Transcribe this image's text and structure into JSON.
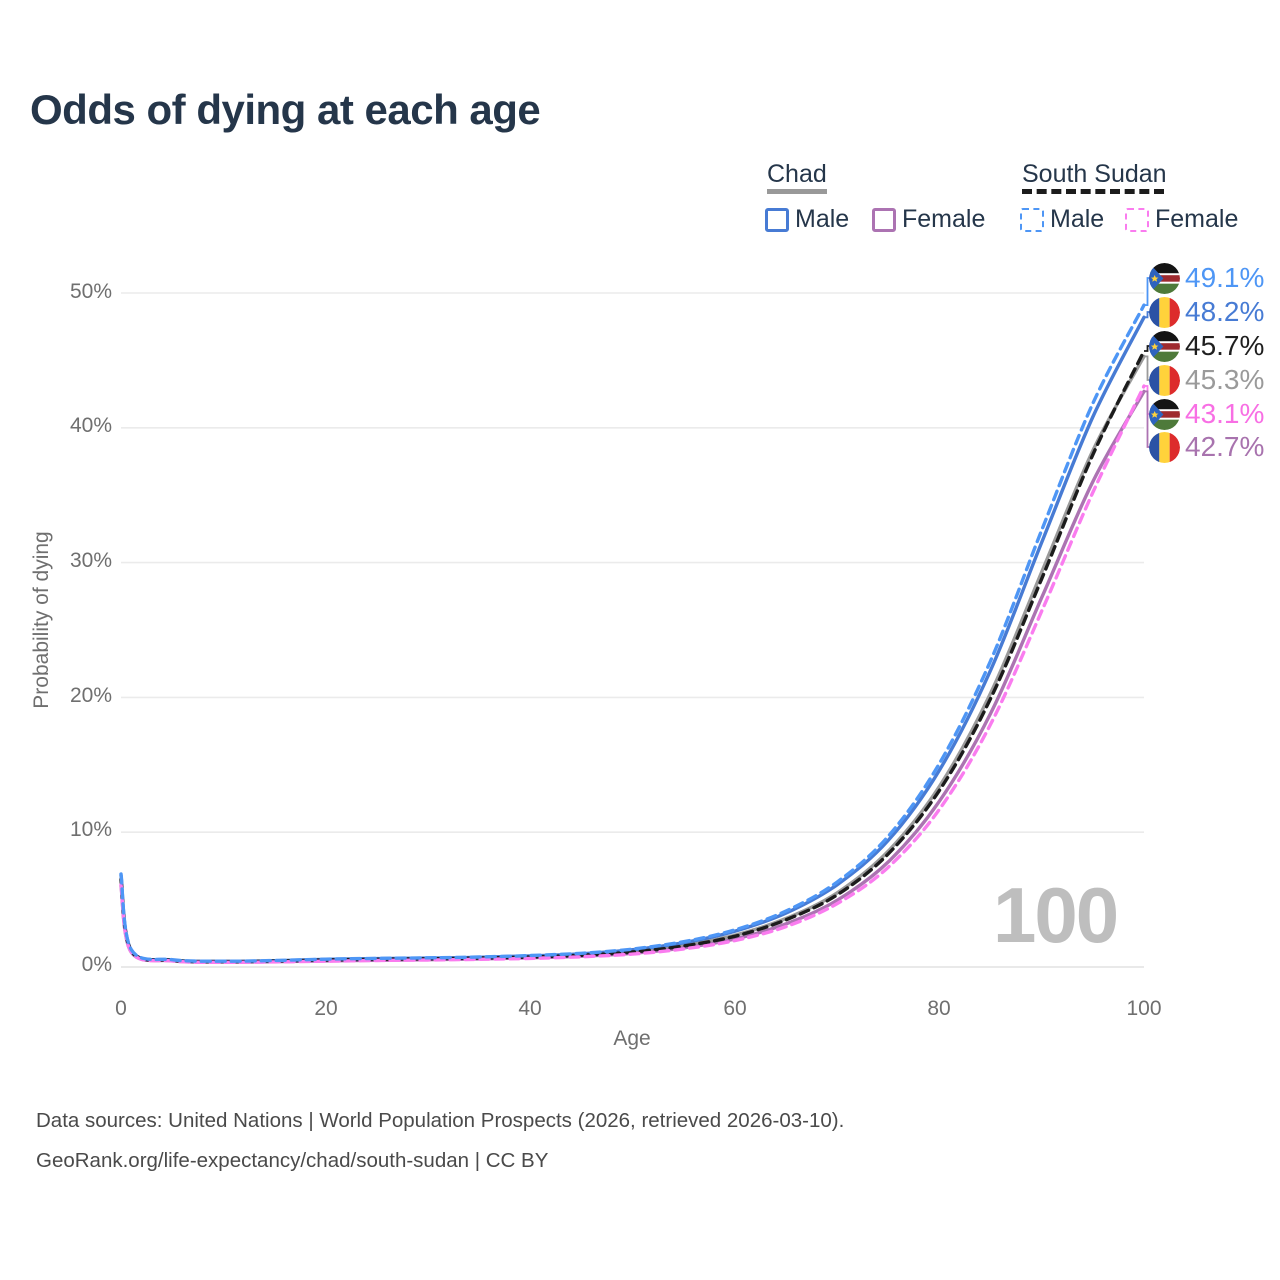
{
  "title": "Odds of dying at each age",
  "legend": {
    "groups": [
      {
        "label": "Chad",
        "underline_style": "solid",
        "underline_color": "#999999",
        "items": [
          {
            "label": "Male",
            "color": "#477BD4",
            "dashed": false
          },
          {
            "label": "Female",
            "color": "#AC73B2",
            "dashed": false
          }
        ]
      },
      {
        "label": "South Sudan",
        "underline_style": "dashed",
        "underline_color": "#1C1C1C",
        "items": [
          {
            "label": "Male",
            "color": "#4E96F5",
            "dashed": true
          },
          {
            "label": "Female",
            "color": "#FA7CEF",
            "dashed": true
          }
        ]
      }
    ]
  },
  "chart_data": {
    "type": "line",
    "title": "Odds of dying at each age",
    "xlabel": "Age",
    "ylabel": "Probability of dying",
    "xlim": [
      0,
      100
    ],
    "ylim": [
      0,
      52
    ],
    "xticks": [
      "0",
      "20",
      "40",
      "60",
      "80",
      "100"
    ],
    "xtick_values": [
      0,
      20,
      40,
      60,
      80,
      100
    ],
    "yticks": [
      "0%",
      "10%",
      "20%",
      "30%",
      "40%",
      "50%"
    ],
    "ytick_values": [
      0,
      10,
      20,
      30,
      40,
      50
    ],
    "grid": "horizontal",
    "gridline_color": "#EBEBEB",
    "x": [
      0,
      1,
      5,
      10,
      15,
      20,
      25,
      30,
      35,
      40,
      45,
      50,
      55,
      60,
      65,
      70,
      75,
      80,
      85,
      90,
      95,
      100
    ],
    "series": [
      {
        "id": "chad_total",
        "name": "Chad — Both sexes",
        "country": "Chad",
        "sex": "both",
        "color": "#9A9A9A",
        "dash": "solid",
        "values": [
          6.4,
          1.18,
          0.49,
          0.39,
          0.43,
          0.51,
          0.56,
          0.6,
          0.66,
          0.75,
          0.89,
          1.14,
          1.6,
          2.35,
          3.6,
          5.5,
          8.6,
          13.4,
          20.3,
          29.3,
          38.3,
          45.3
        ]
      },
      {
        "id": "chad_female",
        "name": "Chad — Female",
        "country": "Chad",
        "sex": "female",
        "color": "#AC73B2",
        "dash": "solid",
        "values": [
          6.0,
          1.1,
          0.46,
          0.36,
          0.39,
          0.45,
          0.5,
          0.54,
          0.6,
          0.68,
          0.8,
          1.02,
          1.42,
          2.08,
          3.2,
          4.95,
          7.8,
          12.3,
          18.8,
          27.4,
          36.0,
          42.7
        ]
      },
      {
        "id": "chad_male",
        "name": "Chad — Male",
        "country": "Chad",
        "sex": "male",
        "color": "#477BD4",
        "dash": "solid",
        "values": [
          6.8,
          1.25,
          0.52,
          0.42,
          0.47,
          0.57,
          0.62,
          0.66,
          0.72,
          0.82,
          0.98,
          1.28,
          1.8,
          2.65,
          4.0,
          6.1,
          9.4,
          14.6,
          22.0,
          31.5,
          40.8,
          48.2
        ]
      },
      {
        "id": "ss_total",
        "name": "South Sudan — Both sexes",
        "country": "South Sudan",
        "sex": "both",
        "color": "#1C1C1C",
        "dash": "dashed",
        "values": [
          6.5,
          1.2,
          0.5,
          0.4,
          0.44,
          0.52,
          0.57,
          0.61,
          0.66,
          0.74,
          0.87,
          1.11,
          1.56,
          2.28,
          3.5,
          5.35,
          8.4,
          13.1,
          19.9,
          28.8,
          38.0,
          45.7
        ]
      },
      {
        "id": "ss_female",
        "name": "South Sudan — Female",
        "country": "South Sudan",
        "sex": "female",
        "color": "#FA7CEF",
        "dash": "dashed",
        "values": [
          6.1,
          1.12,
          0.45,
          0.35,
          0.38,
          0.43,
          0.48,
          0.52,
          0.57,
          0.64,
          0.76,
          0.96,
          1.34,
          1.96,
          3.0,
          4.7,
          7.4,
          11.7,
          18.0,
          26.4,
          35.2,
          43.1
        ]
      },
      {
        "id": "ss_male",
        "name": "South Sudan — Male",
        "country": "South Sudan",
        "sex": "male",
        "color": "#4E96F5",
        "dash": "dashed",
        "values": [
          6.9,
          1.3,
          0.54,
          0.43,
          0.48,
          0.58,
          0.64,
          0.68,
          0.74,
          0.85,
          1.02,
          1.33,
          1.88,
          2.75,
          4.15,
          6.3,
          9.7,
          15.1,
          22.7,
          32.4,
          41.8,
          49.1
        ]
      }
    ]
  },
  "end_labels": [
    {
      "series": "ss_male",
      "flag": "south-sudan-flag-icon",
      "text": "49.1%",
      "value": 49.1,
      "color": "#4E96F5"
    },
    {
      "series": "chad_male",
      "flag": "chad-flag-icon",
      "text": "48.2%",
      "value": 48.2,
      "color": "#477BD4"
    },
    {
      "series": "ss_total",
      "flag": "south-sudan-flag-icon",
      "text": "45.7%",
      "value": 45.7,
      "color": "#1F1F1F"
    },
    {
      "series": "chad_total",
      "flag": "chad-flag-icon",
      "text": "45.3%",
      "value": 45.3,
      "color": "#9A9A9A"
    },
    {
      "series": "ss_female",
      "flag": "south-sudan-flag-icon",
      "text": "43.1%",
      "value": 43.1,
      "color": "#F86FE4"
    },
    {
      "series": "chad_female",
      "flag": "chad-flag-icon",
      "text": "42.7%",
      "value": 42.7,
      "color": "#A873AE"
    }
  ],
  "watermark": "100",
  "footer": {
    "line1": "Data sources: United Nations | World Population Prospects (2026, retrieved 2026-03-10).",
    "line2": "GeoRank.org/life-expectancy/chad/south-sudan | CC BY"
  }
}
